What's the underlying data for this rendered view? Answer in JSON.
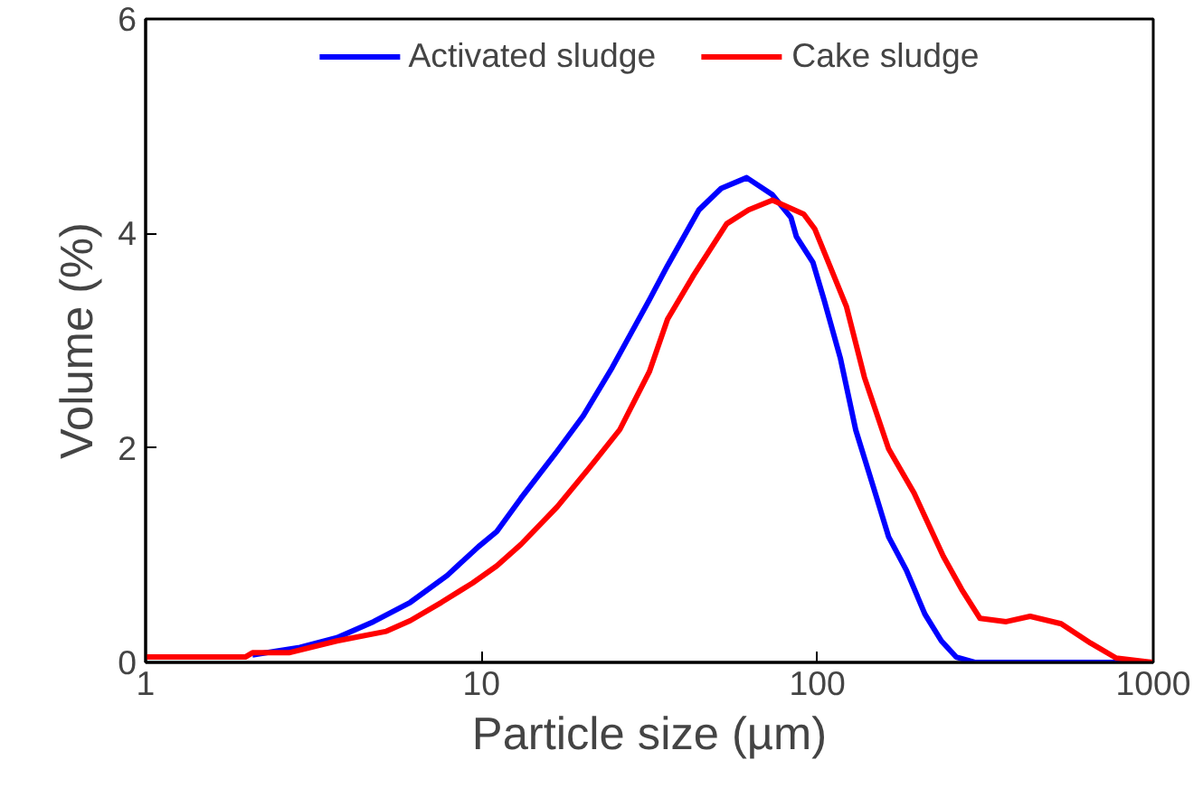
{
  "chart_data": {
    "type": "line",
    "xlabel": "Particle size (µm)",
    "ylabel": "Volume (%)",
    "log": "x",
    "xlim": [
      1,
      1000
    ],
    "xticks": [
      1,
      10,
      100,
      1000
    ],
    "ylim": [
      0,
      6
    ],
    "yticks": [
      0,
      2,
      4,
      6
    ],
    "grid": false,
    "legend": "top",
    "marker": "none",
    "line_style": "solid",
    "series": [
      {
        "name": "Activated sludge",
        "color": "#0000ff",
        "x": [
          2.08,
          2.88,
          3.71,
          4.77,
          6.14,
          7.9,
          9.8,
          11.1,
          13.1,
          16.8,
          20.1,
          24.5,
          31.6,
          35.8,
          44.4,
          51.7,
          61.6,
          73.5,
          83.4,
          86.6,
          97,
          104.7,
          117,
          130,
          147,
          163,
          184,
          209,
          234,
          259,
          294,
          915,
          1000
        ],
        "values": [
          0.07,
          0.14,
          0.23,
          0.38,
          0.56,
          0.81,
          1.08,
          1.22,
          1.53,
          1.97,
          2.3,
          2.75,
          3.38,
          3.7,
          4.22,
          4.42,
          4.52,
          4.36,
          4.15,
          3.97,
          3.73,
          3.38,
          2.84,
          2.17,
          1.63,
          1.17,
          0.86,
          0.45,
          0.2,
          0.05,
          0,
          0,
          0
        ]
      },
      {
        "name": "Cake sludge",
        "color": "#ff0000",
        "x": [
          1,
          1.98,
          2.08,
          2.67,
          3.71,
          5.21,
          6.14,
          7.6,
          9.4,
          11.1,
          13.1,
          16.8,
          20.9,
          25.8,
          31.6,
          35.8,
          42.8,
          53.7,
          62.4,
          73.5,
          91.1,
          98.3,
          122,
          138,
          163,
          194,
          237,
          269,
          305,
          365,
          430,
          532,
          651,
          776,
          1000
        ],
        "values": [
          0.05,
          0.05,
          0.09,
          0.09,
          0.2,
          0.29,
          0.39,
          0.56,
          0.74,
          0.9,
          1.1,
          1.45,
          1.81,
          2.17,
          2.71,
          3.2,
          3.61,
          4.09,
          4.22,
          4.31,
          4.18,
          4.04,
          3.32,
          2.66,
          1.99,
          1.58,
          0.99,
          0.68,
          0.41,
          0.38,
          0.43,
          0.36,
          0.18,
          0.04,
          0
        ]
      }
    ]
  }
}
